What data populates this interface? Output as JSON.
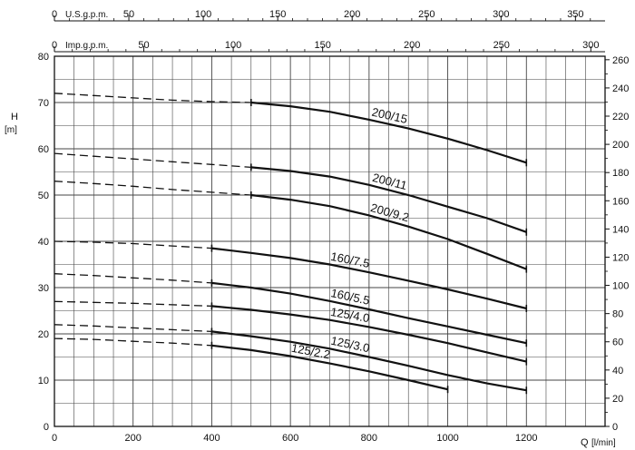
{
  "chart_data": {
    "type": "line",
    "title": "",
    "xlabel": "Q",
    "xunit": "[l/min]",
    "ylabel": "H",
    "yunit": "[m]",
    "xlim": [
      0,
      1400
    ],
    "ylim": [
      0,
      80
    ],
    "x_ticks": [
      0,
      200,
      400,
      600,
      800,
      1000,
      1200
    ],
    "y_ticks": [
      0,
      10,
      20,
      30,
      40,
      50,
      60,
      70,
      80
    ],
    "grid": true,
    "top_axis_usgpm": {
      "label": "U.S.g.p.m.",
      "ticks": [
        0,
        50,
        100,
        150,
        200,
        250,
        300,
        350
      ],
      "lpm_per_unit": 3.785
    },
    "top_axis_impgpm": {
      "label": "Imp.g.p.m.",
      "ticks": [
        0,
        50,
        100,
        150,
        200,
        250,
        300
      ],
      "lpm_per_unit": 4.546
    },
    "right_axis_feet": {
      "ticks": [
        0,
        20,
        40,
        60,
        80,
        100,
        120,
        140,
        160,
        180,
        200,
        220,
        240,
        260
      ],
      "m_per_unit": 0.3048
    },
    "series": [
      {
        "name": "200/15",
        "dashed": [
          [
            0,
            72
          ],
          [
            100,
            71.5
          ],
          [
            200,
            71
          ],
          [
            300,
            70.5
          ],
          [
            400,
            70.2
          ],
          [
            500,
            70
          ]
        ],
        "solid": [
          [
            500,
            70
          ],
          [
            600,
            69.2
          ],
          [
            700,
            68
          ],
          [
            800,
            66.3
          ],
          [
            900,
            64.4
          ],
          [
            1000,
            62.2
          ],
          [
            1100,
            59.7
          ],
          [
            1200,
            57
          ]
        ]
      },
      {
        "name": "200/11",
        "dashed": [
          [
            0,
            59
          ],
          [
            100,
            58.4
          ],
          [
            200,
            57.8
          ],
          [
            300,
            57.2
          ],
          [
            400,
            56.6
          ],
          [
            500,
            56
          ]
        ],
        "solid": [
          [
            500,
            56
          ],
          [
            600,
            55.2
          ],
          [
            700,
            54
          ],
          [
            800,
            52.2
          ],
          [
            900,
            50
          ],
          [
            1000,
            47.5
          ],
          [
            1100,
            45
          ],
          [
            1200,
            42
          ]
        ]
      },
      {
        "name": "200/9.2",
        "dashed": [
          [
            0,
            53
          ],
          [
            100,
            52.5
          ],
          [
            200,
            51.9
          ],
          [
            300,
            51.2
          ],
          [
            400,
            50.6
          ],
          [
            500,
            50
          ]
        ],
        "solid": [
          [
            500,
            50
          ],
          [
            600,
            49
          ],
          [
            700,
            47.6
          ],
          [
            800,
            45.6
          ],
          [
            900,
            43.2
          ],
          [
            1000,
            40.5
          ],
          [
            1100,
            37.3
          ],
          [
            1200,
            34
          ]
        ]
      },
      {
        "name": "160/7.5",
        "dashed": [
          [
            0,
            40
          ],
          [
            100,
            39.8
          ],
          [
            200,
            39.5
          ],
          [
            300,
            39
          ],
          [
            400,
            38.5
          ]
        ],
        "solid": [
          [
            400,
            38.5
          ],
          [
            500,
            37.5
          ],
          [
            600,
            36.4
          ],
          [
            700,
            35
          ],
          [
            800,
            33.3
          ],
          [
            900,
            31.5
          ],
          [
            1000,
            29.6
          ],
          [
            1100,
            27.6
          ],
          [
            1200,
            25.5
          ]
        ]
      },
      {
        "name": "160/5.5",
        "dashed": [
          [
            0,
            33
          ],
          [
            100,
            32.6
          ],
          [
            200,
            32.1
          ],
          [
            300,
            31.6
          ],
          [
            400,
            31
          ]
        ],
        "solid": [
          [
            400,
            31
          ],
          [
            500,
            30
          ],
          [
            600,
            28.7
          ],
          [
            700,
            27.1
          ],
          [
            800,
            25.3
          ],
          [
            900,
            23.4
          ],
          [
            1000,
            21.6
          ],
          [
            1100,
            19.8
          ],
          [
            1200,
            18
          ]
        ]
      },
      {
        "name": "125/4.0",
        "dashed": [
          [
            0,
            27
          ],
          [
            100,
            26.8
          ],
          [
            200,
            26.6
          ],
          [
            300,
            26.3
          ],
          [
            400,
            26
          ]
        ],
        "solid": [
          [
            400,
            26
          ],
          [
            500,
            25.2
          ],
          [
            600,
            24.2
          ],
          [
            700,
            23
          ],
          [
            800,
            21.5
          ],
          [
            900,
            19.8
          ],
          [
            1000,
            18
          ],
          [
            1100,
            16
          ],
          [
            1200,
            14
          ]
        ]
      },
      {
        "name": "125/3.0",
        "dashed": [
          [
            0,
            22
          ],
          [
            100,
            21.7
          ],
          [
            200,
            21.3
          ],
          [
            300,
            20.9
          ],
          [
            400,
            20.5
          ]
        ],
        "solid": [
          [
            400,
            20.5
          ],
          [
            500,
            19.5
          ],
          [
            600,
            18.3
          ],
          [
            700,
            16.8
          ],
          [
            800,
            15
          ],
          [
            900,
            13.1
          ],
          [
            1000,
            11.1
          ],
          [
            1100,
            9.3
          ],
          [
            1200,
            7.8
          ]
        ]
      },
      {
        "name": "125/2.2",
        "dashed": [
          [
            0,
            19
          ],
          [
            100,
            18.8
          ],
          [
            200,
            18.4
          ],
          [
            300,
            18
          ],
          [
            400,
            17.5
          ]
        ],
        "solid": [
          [
            400,
            17.5
          ],
          [
            500,
            16.5
          ],
          [
            600,
            15.2
          ],
          [
            700,
            13.6
          ],
          [
            800,
            11.9
          ],
          [
            900,
            10
          ],
          [
            1000,
            8
          ]
        ]
      }
    ]
  }
}
